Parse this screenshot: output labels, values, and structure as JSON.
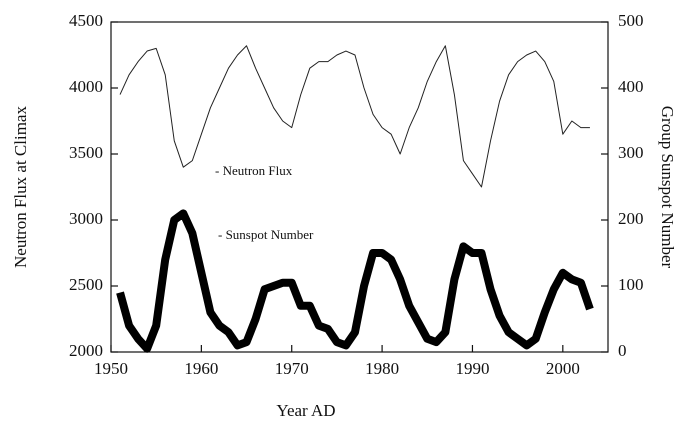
{
  "chart_data": {
    "type": "line",
    "xlabel": "Year AD",
    "ylabel": "Neutron Flux at Climax",
    "y2label": "Group Sunspot Number",
    "annotations": [
      "- Neutron Flux",
      "-  Sunspot Number"
    ],
    "x": [
      1951,
      1952,
      1953,
      1954,
      1955,
      1956,
      1957,
      1958,
      1959,
      1960,
      1961,
      1962,
      1963,
      1964,
      1965,
      1966,
      1967,
      1968,
      1969,
      1970,
      1971,
      1972,
      1973,
      1974,
      1975,
      1976,
      1977,
      1978,
      1979,
      1980,
      1981,
      1982,
      1983,
      1984,
      1985,
      1986,
      1987,
      1988,
      1989,
      1990,
      1991,
      1992,
      1993,
      1994,
      1995,
      1996,
      1997,
      1998,
      1999,
      2000,
      2001,
      2002,
      2003
    ],
    "series": [
      {
        "name": "Neutron Flux",
        "color": "#222222",
        "width": 1,
        "values": [
          3950,
          4100,
          4200,
          4280,
          4300,
          4100,
          3600,
          3400,
          3450,
          3650,
          3850,
          4000,
          4150,
          4250,
          4320,
          4150,
          4000,
          3850,
          3750,
          3700,
          3950,
          4150,
          4200,
          4200,
          4250,
          4280,
          4250,
          4000,
          3800,
          3700,
          3650,
          3500,
          3700,
          3850,
          4050,
          4200,
          4320,
          3950,
          3450,
          3350,
          3250,
          3600,
          3900,
          4100,
          4200,
          4250,
          4280,
          4200,
          4050,
          3650,
          3750,
          3700,
          3700
        ]
      },
      {
        "name": "Sunspot Number",
        "color": "#000000",
        "width": 8,
        "axis": "y2",
        "values": [
          90,
          40,
          20,
          5,
          40,
          140,
          200,
          210,
          180,
          120,
          60,
          40,
          30,
          10,
          15,
          50,
          95,
          100,
          105,
          105,
          70,
          70,
          40,
          35,
          15,
          10,
          30,
          100,
          150,
          150,
          140,
          110,
          70,
          45,
          20,
          15,
          30,
          110,
          160,
          150,
          150,
          95,
          55,
          30,
          20,
          10,
          20,
          60,
          95,
          120,
          110,
          105,
          65
        ]
      }
    ],
    "xlim": [
      1950,
      2005
    ],
    "xticks": [
      1950,
      1960,
      1970,
      1980,
      1990,
      2000
    ],
    "ylim": [
      2000,
      4500
    ],
    "yticks": [
      2000,
      2500,
      3000,
      3500,
      4000,
      4500
    ],
    "y2lim": [
      0,
      500
    ],
    "y2ticks": [
      0,
      100,
      200,
      300,
      400,
      500
    ]
  }
}
